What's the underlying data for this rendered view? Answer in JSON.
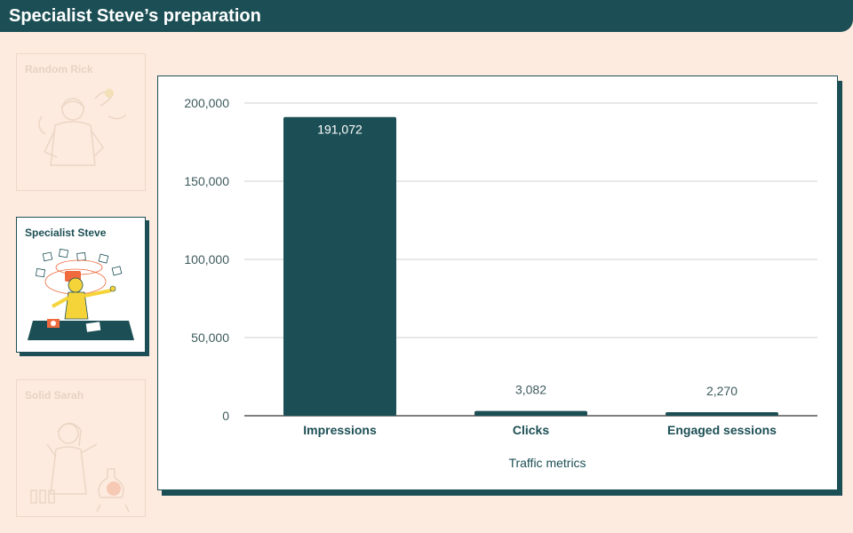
{
  "header": {
    "title": "Specialist Steve’s preparation"
  },
  "personas": [
    {
      "label": "Random Rick",
      "state": "inactive"
    },
    {
      "label": "Specialist Steve",
      "state": "active"
    },
    {
      "label": "Solid Sarah",
      "state": "inactive"
    }
  ],
  "colors": {
    "primary": "#1c4f55",
    "background": "#fdebdf",
    "accent_orange": "#ef6a3d",
    "accent_yellow": "#f5d43a",
    "faded": "#e6d3c4"
  },
  "chart_data": {
    "type": "bar",
    "title": "",
    "categories": [
      "Impressions",
      "Clicks",
      "Engaged sessions"
    ],
    "values": [
      191072,
      3082,
      2270
    ],
    "value_labels": [
      "191,072",
      "3,082",
      "2,270"
    ],
    "xlabel": "Traffic metrics",
    "ylabel": "",
    "ylim": [
      0,
      200000
    ],
    "yticks": [
      0,
      50000,
      100000,
      150000,
      200000
    ],
    "ytick_labels": [
      "0",
      "50,000",
      "100,000",
      "150,000",
      "200,000"
    ],
    "grid": true,
    "legend": "none"
  }
}
